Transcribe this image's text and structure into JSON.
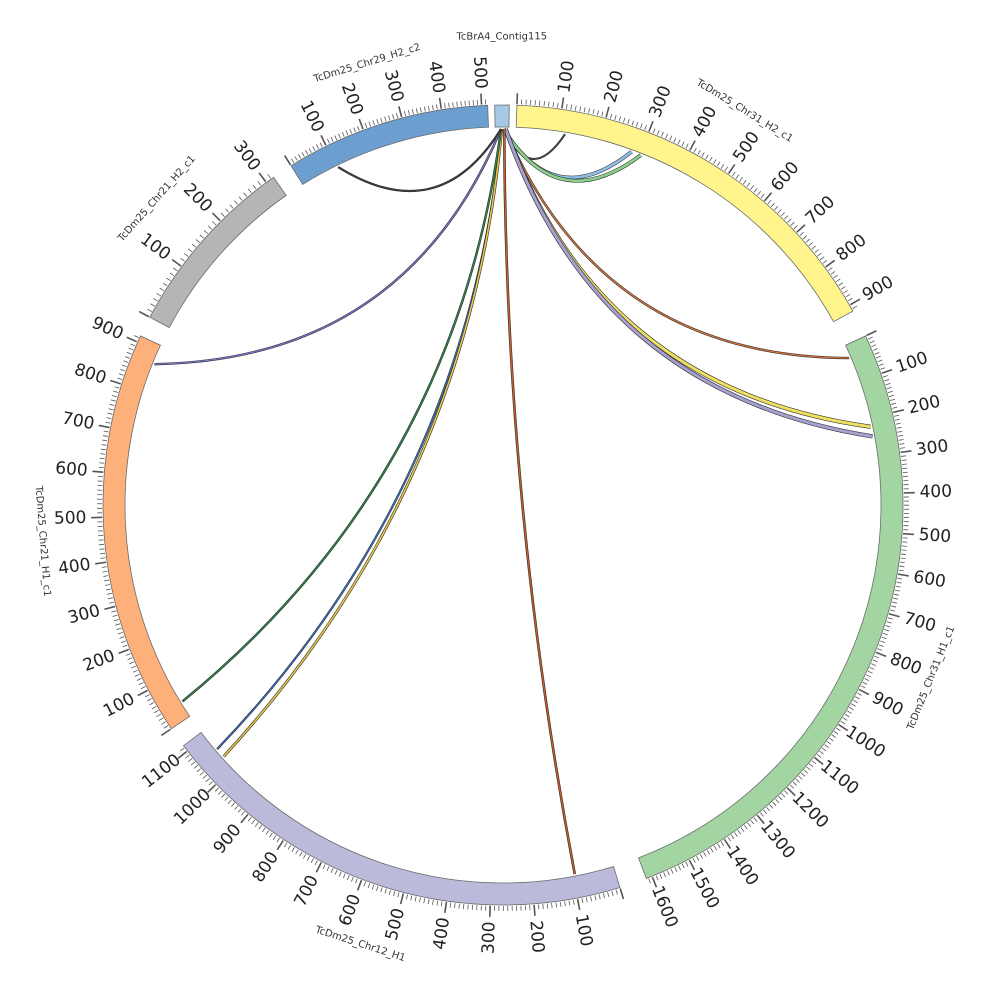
{
  "chart_data": {
    "type": "chord",
    "segments": [
      {
        "name": "TcBrA4_Contig115",
        "start_angle": -1.2,
        "end_angle": 0.9,
        "color": "#a6c8e4",
        "tick_step": 100,
        "tick_max": 0,
        "tick_min": 0
      },
      {
        "name": "TcDm25_Chr31_H2_c1",
        "start_angle": 2.0,
        "end_angle": 61.0,
        "color": "#fff58c",
        "tick_step": 100,
        "tick_min": 100,
        "tick_max": 900
      },
      {
        "name": "TcDm25_Chr31_H1_c1",
        "start_angle": 65.0,
        "end_angle": 159.0,
        "color": "#a3d5a3",
        "tick_step": 100,
        "tick_min": 100,
        "tick_max": 1600
      },
      {
        "name": "TcDm25_Chr12_H1",
        "start_angle": 163.0,
        "end_angle": 233.0,
        "color": "#bcbadb",
        "tick_step": 100,
        "tick_min": 100,
        "tick_max": 1100
      },
      {
        "name": "TcDm25_Chr21_H1_c1",
        "start_angle": 236.0,
        "end_angle": 295.0,
        "color": "#fdb07a",
        "tick_step": 100,
        "tick_min": 100,
        "tick_max": 900
      },
      {
        "name": "TcDm25_Chr21_H2_c1",
        "start_angle": 298.0,
        "end_angle": 325.0,
        "color": "#b5b5b5",
        "tick_step": 100,
        "tick_min": 100,
        "tick_max": 300
      },
      {
        "name": "TcDm25_Chr29_H2_c2",
        "start_angle": 328.0,
        "end_angle": 357.8,
        "color": "#6c9fd0",
        "tick_step": 100,
        "tick_min": 100,
        "tick_max": 500
      }
    ],
    "tick_labels": {
      "TcDm25_Chr31_H2_c1": [
        "100",
        "200",
        "300",
        "400",
        "500",
        "600",
        "700",
        "800",
        "900"
      ],
      "TcDm25_Chr31_H1_c1": [
        "100",
        "200",
        "300",
        "400",
        "500",
        "600",
        "700",
        "800",
        "900",
        "1000",
        "1100",
        "1200",
        "1300",
        "1400",
        "1500",
        "1600"
      ],
      "TcDm25_Chr12_H1": [
        "100",
        "200",
        "300",
        "400",
        "500",
        "600",
        "700",
        "800",
        "900",
        "1000",
        "1100"
      ],
      "TcDm25_Chr21_H1_c1": [
        "100",
        "200",
        "300",
        "400",
        "500",
        "600",
        "700",
        "800",
        "900"
      ],
      "TcDm25_Chr21_H2_c1": [
        "100",
        "200",
        "300"
      ],
      "TcDm25_Chr29_H2_c2": [
        "100",
        "200",
        "300",
        "400",
        "500"
      ]
    },
    "links": [
      {
        "from_angle": 0.2,
        "to_angle": 9.5,
        "width": 0.9,
        "color": "#4d4d4d"
      },
      {
        "from_angle": 0.1,
        "to_angle": 20.0,
        "width": 2.6,
        "color": "#8fbfe6"
      },
      {
        "from_angle": 0.1,
        "to_angle": 21.5,
        "width": 2.6,
        "color": "#8cd18c"
      },
      {
        "from_angle": 0.3,
        "to_angle": 67.0,
        "width": 1.2,
        "color": "#e0783a"
      },
      {
        "from_angle": 0.4,
        "to_angle": 78.0,
        "width": 3.0,
        "color": "#f0e060"
      },
      {
        "from_angle": 0.4,
        "to_angle": 79.5,
        "width": 3.0,
        "color": "#a7a1d2"
      },
      {
        "from_angle": 0.2,
        "to_angle": 169.0,
        "width": 1.4,
        "color": "#cf5a2a"
      },
      {
        "from_angle": -0.2,
        "to_angle": 229.5,
        "width": 1.0,
        "color": "#3a7ad0"
      },
      {
        "from_angle": -0.2,
        "to_angle": 228.0,
        "width": 1.6,
        "color": "#e6c84a"
      },
      {
        "from_angle": -0.3,
        "to_angle": 238.5,
        "width": 1.2,
        "color": "#2e8a4e"
      },
      {
        "from_angle": -0.3,
        "to_angle": 292.0,
        "width": 1.2,
        "color": "#7b7bcf"
      },
      {
        "from_angle": -0.3,
        "to_angle": 334.0,
        "width": 1.0,
        "color": "#404040"
      }
    ]
  }
}
